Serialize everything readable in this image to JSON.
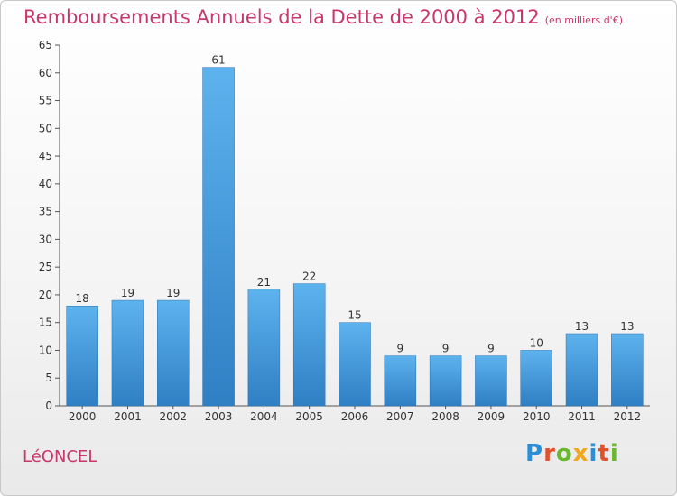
{
  "header": {
    "title": "Remboursements Annuels de la Dette de 2000 à 2012",
    "unit": "(en milliers d'€)"
  },
  "commune": "LéONCEL",
  "logo": {
    "text": "Proxiti",
    "letter_colors": [
      "#2a8fd6",
      "#e0522b",
      "#6ab82e",
      "#f0a81c",
      "#2a8fd6",
      "#e0522b",
      "#6ab82e"
    ]
  },
  "chart_data": {
    "type": "bar",
    "categories": [
      "2000",
      "2001",
      "2002",
      "2003",
      "2004",
      "2005",
      "2006",
      "2007",
      "2008",
      "2009",
      "2010",
      "2011",
      "2012"
    ],
    "values": [
      18,
      19,
      19,
      61,
      21,
      22,
      15,
      9,
      9,
      9,
      10,
      13,
      13
    ],
    "ylim": [
      0,
      65
    ],
    "yticks": [
      0,
      5,
      10,
      15,
      20,
      25,
      30,
      35,
      40,
      45,
      50,
      55,
      60,
      65
    ],
    "grid": false,
    "bar_color": "#4a9fe0"
  }
}
